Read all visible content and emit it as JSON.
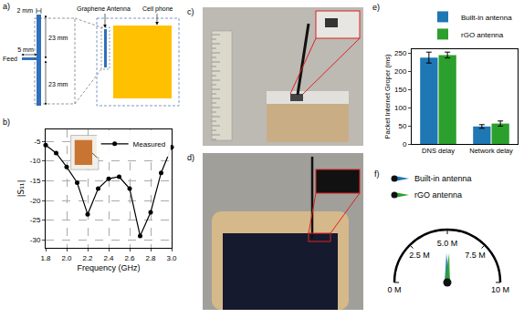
{
  "panel_labels": {
    "a": "a)",
    "b": "b)",
    "c": "c)",
    "d": "d)",
    "e": "e)",
    "f": "f)"
  },
  "diagram": {
    "strip_width": "2 mm",
    "feed_length": "5 mm",
    "upper_length": "23 mm",
    "lower_length": "23 mm",
    "feed": "Feed",
    "antenna_label": "Graphene Antenna",
    "phone_label": "Cell phone"
  },
  "chart_data": [
    {
      "type": "line",
      "x": [
        1.8,
        1.9,
        2.0,
        2.1,
        2.2,
        2.3,
        2.4,
        2.5,
        2.6,
        2.7,
        2.8,
        2.9,
        3.0
      ],
      "series": [
        {
          "name": "Measured",
          "color": "#000000",
          "marker": "circle",
          "line_style": "solid",
          "values": [
            -6,
            -8,
            -11.5,
            -15.5,
            -23.5,
            -17,
            -14.5,
            -14,
            -17,
            -29,
            -23,
            -13,
            -6.5
          ]
        }
      ],
      "x_label": "Frequency (GHz)",
      "y_label": "|S₁₁|",
      "xlim": [
        1.8,
        3.0
      ],
      "xticks": [
        1.8,
        {
          "value": 2,
          "label": "2.0"
        },
        2.2,
        2.4,
        2.6,
        2.8,
        {
          "value": 3,
          "label": "3.0"
        }
      ],
      "ylim": [
        -32,
        -2
      ],
      "yticks": [
        -30,
        -25,
        -20,
        -15,
        -10,
        -5
      ],
      "grid": true,
      "legend": "top-right"
    },
    {
      "type": "bar",
      "categories": [
        "DNS delay",
        "Network delay"
      ],
      "series": [
        {
          "name": "Built-in antenna",
          "color": "#1f77b4",
          "values": [
            237,
            48
          ],
          "errors": [
            15,
            5
          ]
        },
        {
          "name": "rGO antenna",
          "color": "#2ca02c",
          "values": [
            244,
            56
          ],
          "errors": [
            8,
            7
          ]
        }
      ],
      "y_label": "Packet Internet Groper (ms)",
      "ylim": [
        0,
        260
      ],
      "yticks": [
        0,
        50,
        100,
        150,
        200,
        250
      ],
      "grid": false,
      "legend": "above"
    },
    {
      "type": "gauge",
      "xlim": [
        0,
        10
      ],
      "xticks": [
        {
          "value": 0,
          "label": "0 M"
        },
        {
          "value": 2.5,
          "label": "2.5 M"
        },
        {
          "value": 5,
          "label": "5.0 M"
        },
        {
          "value": 7.5,
          "label": "7.5 M"
        },
        {
          "value": 10,
          "label": "10 M"
        }
      ],
      "series": [
        {
          "name": "Built-in antenna",
          "color": "#1f77b4",
          "values": [
            4.9
          ]
        },
        {
          "name": "rGO antenna",
          "color": "#2ca02c",
          "values": [
            5.2
          ]
        }
      ],
      "legend": "top-left"
    }
  ]
}
